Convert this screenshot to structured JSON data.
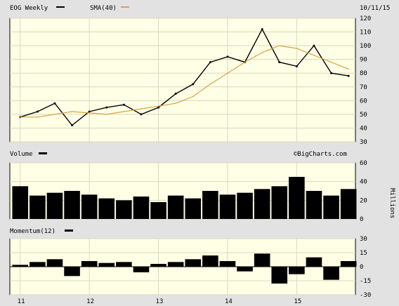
{
  "chart_data": [
    {
      "type": "line",
      "title": "EOG Weekly",
      "legend": [
        {
          "name": "EOG Weekly",
          "color": "#000000"
        },
        {
          "name": "SMA(40)",
          "color": "#d9a441"
        }
      ],
      "date": "10/11/15",
      "watermark": "©BigCharts.com",
      "ylim": [
        30,
        120
      ],
      "yticks": [
        "120",
        "110",
        "100",
        "90",
        "80",
        "70",
        "60",
        "50",
        "40",
        "30"
      ],
      "x_labels": [
        "11",
        "12",
        "13",
        "14",
        "15"
      ],
      "x": [
        2011.0,
        2011.25,
        2011.5,
        2011.75,
        2012.0,
        2012.25,
        2012.5,
        2012.75,
        2013.0,
        2013.25,
        2013.5,
        2013.75,
        2014.0,
        2014.25,
        2014.5,
        2014.75,
        2015.0,
        2015.25,
        2015.5,
        2015.75
      ],
      "series": [
        {
          "name": "EOG Weekly",
          "values": [
            48,
            52,
            58,
            42,
            52,
            55,
            57,
            50,
            55,
            65,
            72,
            88,
            92,
            88,
            112,
            88,
            85,
            100,
            80,
            78
          ]
        },
        {
          "name": "SMA(40)",
          "values": [
            48,
            48,
            50,
            52,
            51,
            50,
            52,
            54,
            56,
            58,
            63,
            72,
            80,
            88,
            95,
            100,
            98,
            93,
            88,
            83
          ]
        }
      ],
      "grid": true
    },
    {
      "type": "area",
      "title": "Volume",
      "ylim": [
        0,
        60
      ],
      "yticks": [
        "60",
        "40",
        "20",
        "0"
      ],
      "ylabel": "Millions",
      "series": [
        {
          "name": "Volume",
          "values": [
            35,
            25,
            28,
            30,
            26,
            22,
            20,
            24,
            18,
            25,
            22,
            30,
            26,
            28,
            32,
            35,
            45,
            30,
            25,
            32
          ]
        }
      ]
    },
    {
      "type": "area",
      "title": "Momentum(12)",
      "ylim": [
        -30,
        30
      ],
      "yticks": [
        "30",
        "15",
        "0",
        "-15",
        "-30"
      ],
      "series": [
        {
          "name": "Momentum(12)",
          "values": [
            2,
            5,
            8,
            -10,
            6,
            4,
            5,
            -6,
            3,
            5,
            8,
            12,
            6,
            -5,
            14,
            -18,
            -8,
            10,
            -14,
            6
          ]
        }
      ]
    }
  ]
}
